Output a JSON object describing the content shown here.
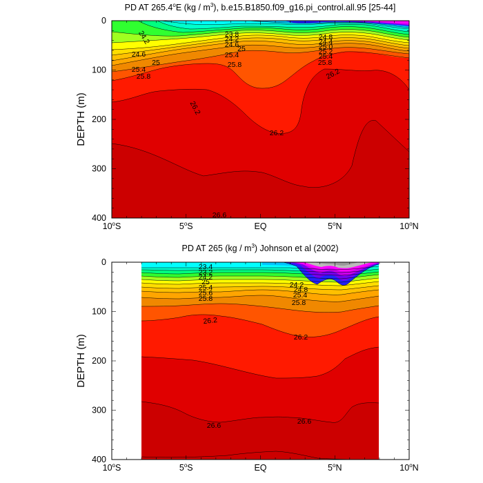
{
  "chart_data": [
    {
      "type": "heatmap",
      "subtype": "filled-contour",
      "title": "PD AT 265.4°E (kg / m3), b.e15.B1850.f09_g16.pi_control.all.95 [25-44]",
      "title_parts": [
        "PD AT 265.4",
        "E (kg / m",
        "), b.e15.B1850.f09_g16.pi_control.all.95 [25-44]"
      ],
      "ylabel": "DEPTH (m)",
      "xlabel": "",
      "xlim": [
        -10,
        10
      ],
      "ylim": [
        400,
        0
      ],
      "x_ticks": [
        {
          "value": -10,
          "num": "10",
          "hemi": "S"
        },
        {
          "value": -5,
          "num": "5",
          "hemi": "S"
        },
        {
          "value": 0,
          "num": "EQ",
          "hemi": ""
        },
        {
          "value": 5,
          "num": "5",
          "hemi": "N"
        },
        {
          "value": 10,
          "num": "10",
          "hemi": "N"
        }
      ],
      "y_ticks": [
        "0",
        "100",
        "200",
        "300",
        "400"
      ],
      "y_tick_values": [
        0,
        100,
        200,
        300,
        400
      ],
      "data_x_range": [
        -10,
        10
      ],
      "contour_levels": [
        23.0,
        23.2,
        23.4,
        23.6,
        23.8,
        24.0,
        24.2,
        24.4,
        24.6,
        24.8,
        25.0,
        25.2,
        25.4,
        25.6,
        25.8,
        26.0,
        26.2,
        26.4,
        26.6,
        26.8
      ],
      "isopycnal_depths_m": {
        "x": [
          -10,
          -8,
          -6,
          -4,
          -2,
          0,
          1,
          2,
          3.5,
          4.5,
          6,
          8,
          10
        ],
        "series": [
          {
            "level": 23.8,
            "depths": [
              0,
              0,
              0,
              2,
              5,
              8,
              8,
              8,
              6,
              4,
              2,
              0,
              0
            ]
          },
          {
            "level": 24.2,
            "depths": [
              0,
              6,
              15,
              20,
              24,
              28,
              30,
              32,
              28,
              20,
              15,
              10,
              8
            ]
          },
          {
            "level": 24.6,
            "depths": [
              35,
              40,
              42,
              38,
              35,
              35,
              36,
              40,
              45,
              42,
              40,
              40,
              40
            ]
          },
          {
            "level": 25.0,
            "depths": [
              65,
              60,
              55,
              50,
              45,
              44,
              45,
              48,
              52,
              50,
              48,
              48,
              50
            ]
          },
          {
            "level": 25.4,
            "depths": [
              85,
              80,
              72,
              63,
              55,
              52,
              54,
              58,
              60,
              58,
              55,
              55,
              56
            ]
          },
          {
            "level": 25.8,
            "depths": [
              110,
              105,
              95,
              82,
              70,
              66,
              68,
              72,
              80,
              78,
              72,
              70,
              70
            ]
          },
          {
            "level": 26.0,
            "depths": [
              140,
              132,
              122,
              115,
              110,
              138,
              118,
              112,
              108,
              95,
              88,
              85,
              90
            ]
          },
          {
            "level": 26.2,
            "depths": [
              187,
              170,
              152,
              145,
              150,
              195,
              210,
              222,
              215,
              125,
              100,
              95,
              145
            ]
          },
          {
            "level": 26.4,
            "depths": [
              255,
              262,
              270,
              300,
              315,
              315,
              318,
              320,
              330,
              320,
              265,
              200,
              268
            ]
          },
          {
            "level": 26.6,
            "depths": [
              360,
              385,
              395,
              398,
              392,
              390,
              390,
              390,
              400,
              400,
              400,
              400,
              400
            ]
          }
        ]
      },
      "contour_labels": [
        "24.2",
        "23.8",
        "24.2",
        "24.6",
        "25",
        "24.6",
        "25",
        "25.4",
        "25.8",
        "25.4",
        "25.8",
        "26.2",
        "26.2",
        "26.2",
        "25.8",
        "26.2",
        "26.6",
        "25.4",
        "25.2",
        "25.0",
        "24.4",
        "24.8",
        "24.2",
        "24.6"
      ]
    },
    {
      "type": "heatmap",
      "subtype": "filled-contour",
      "title": "PD AT 265 (kg / m3) Johnson et al (2002)",
      "title_parts": [
        "PD AT 265 (kg / m",
        ") Johnson et al (2002)"
      ],
      "ylabel": "DEPTH (m)",
      "xlabel": "",
      "xlim": [
        -10,
        10
      ],
      "ylim": [
        400,
        0
      ],
      "x_ticks": [
        {
          "value": -10,
          "num": "10",
          "hemi": "S"
        },
        {
          "value": -5,
          "num": "5",
          "hemi": "S"
        },
        {
          "value": 0,
          "num": "EQ",
          "hemi": ""
        },
        {
          "value": 5,
          "num": "5",
          "hemi": "N"
        },
        {
          "value": 10,
          "num": "10",
          "hemi": "N"
        }
      ],
      "y_ticks": [
        "0",
        "100",
        "200",
        "300",
        "400"
      ],
      "y_tick_values": [
        0,
        100,
        200,
        300,
        400
      ],
      "data_x_range": [
        -8,
        8
      ],
      "contour_levels": [
        22.6,
        22.8,
        23.0,
        23.2,
        23.4,
        23.6,
        23.8,
        24.0,
        24.2,
        24.4,
        24.6,
        24.8,
        25.0,
        25.2,
        25.4,
        25.6,
        25.8,
        26.0,
        26.2,
        26.4,
        26.6,
        26.8
      ],
      "isopycnal_depths_m": {
        "x": [
          -8,
          -6,
          -4,
          -2,
          0,
          2,
          4,
          5,
          6,
          8
        ],
        "series": [
          {
            "level": 23.4,
            "depths": [
              5,
              6,
              8,
              10,
              6,
              2,
              0,
              0,
              0,
              0
            ]
          },
          {
            "level": 24.2,
            "depths": [
              18,
              20,
              22,
              24,
              26,
              24,
              20,
              18,
              18,
              16
            ]
          },
          {
            "level": 25.0,
            "depths": [
              34,
              36,
              38,
              40,
              42,
              42,
              40,
              40,
              36,
              32
            ]
          },
          {
            "level": 25.6,
            "depths": [
              48,
              50,
              52,
              54,
              56,
              56,
              58,
              56,
              52,
              48
            ]
          },
          {
            "level": 25.8,
            "depths": [
              62,
              64,
              66,
              66,
              70,
              72,
              75,
              72,
              66,
              62
            ]
          },
          {
            "level": 26.0,
            "depths": [
              92,
              90,
              88,
              85,
              88,
              95,
              100,
              100,
              95,
              88
            ]
          },
          {
            "level": 26.2,
            "depths": [
              118,
              116,
              112,
              115,
              128,
              146,
              150,
              135,
              120,
              110
            ]
          },
          {
            "level": 26.4,
            "depths": [
              210,
              205,
              200,
              205,
              225,
              245,
              255,
              240,
              200,
              175
            ]
          },
          {
            "level": 26.6,
            "depths": [
              290,
              300,
              330,
              320,
              310,
              330,
              340,
              300,
              290,
              285
            ]
          },
          {
            "level": 26.8,
            "depths": [
              400,
              400,
              396,
              385,
              382,
              388,
              396,
              400,
              400,
              400
            ]
          }
        ]
      },
      "contour_labels": [
        "23.4",
        "23.2",
        "24.2",
        "25",
        "25.4",
        "25.6",
        "25.8",
        "26.2",
        "26.2",
        "25.4",
        "25.8",
        "24.2",
        "24.8",
        "26.6",
        "26.6"
      ]
    }
  ],
  "colors": {
    "d_22_6": "#999999",
    "d_22_8": "#bbbbbb",
    "d_23_0": "#ff00ff",
    "d_23_2": "#cc00ee",
    "d_23_4": "#7700ee",
    "d_23_6": "#2222ff",
    "d_23_8": "#00c4ff",
    "d_24_0": "#00ffff",
    "d_24_2": "#00ffcc",
    "d_24_4": "#00ff80",
    "d_24_6": "#30ff30",
    "d_24_8": "#a0ff20",
    "d_25_0": "#ffff00",
    "d_25_2": "#ffdd00",
    "d_25_4": "#ffc000",
    "d_25_6": "#ffa500",
    "d_25_8": "#f08800",
    "d_26_0": "#ff5500",
    "d_26_2": "#ff1a00",
    "d_26_4": "#e00000",
    "d_26_6": "#cc0000",
    "d_26_8": "#bb0000"
  }
}
